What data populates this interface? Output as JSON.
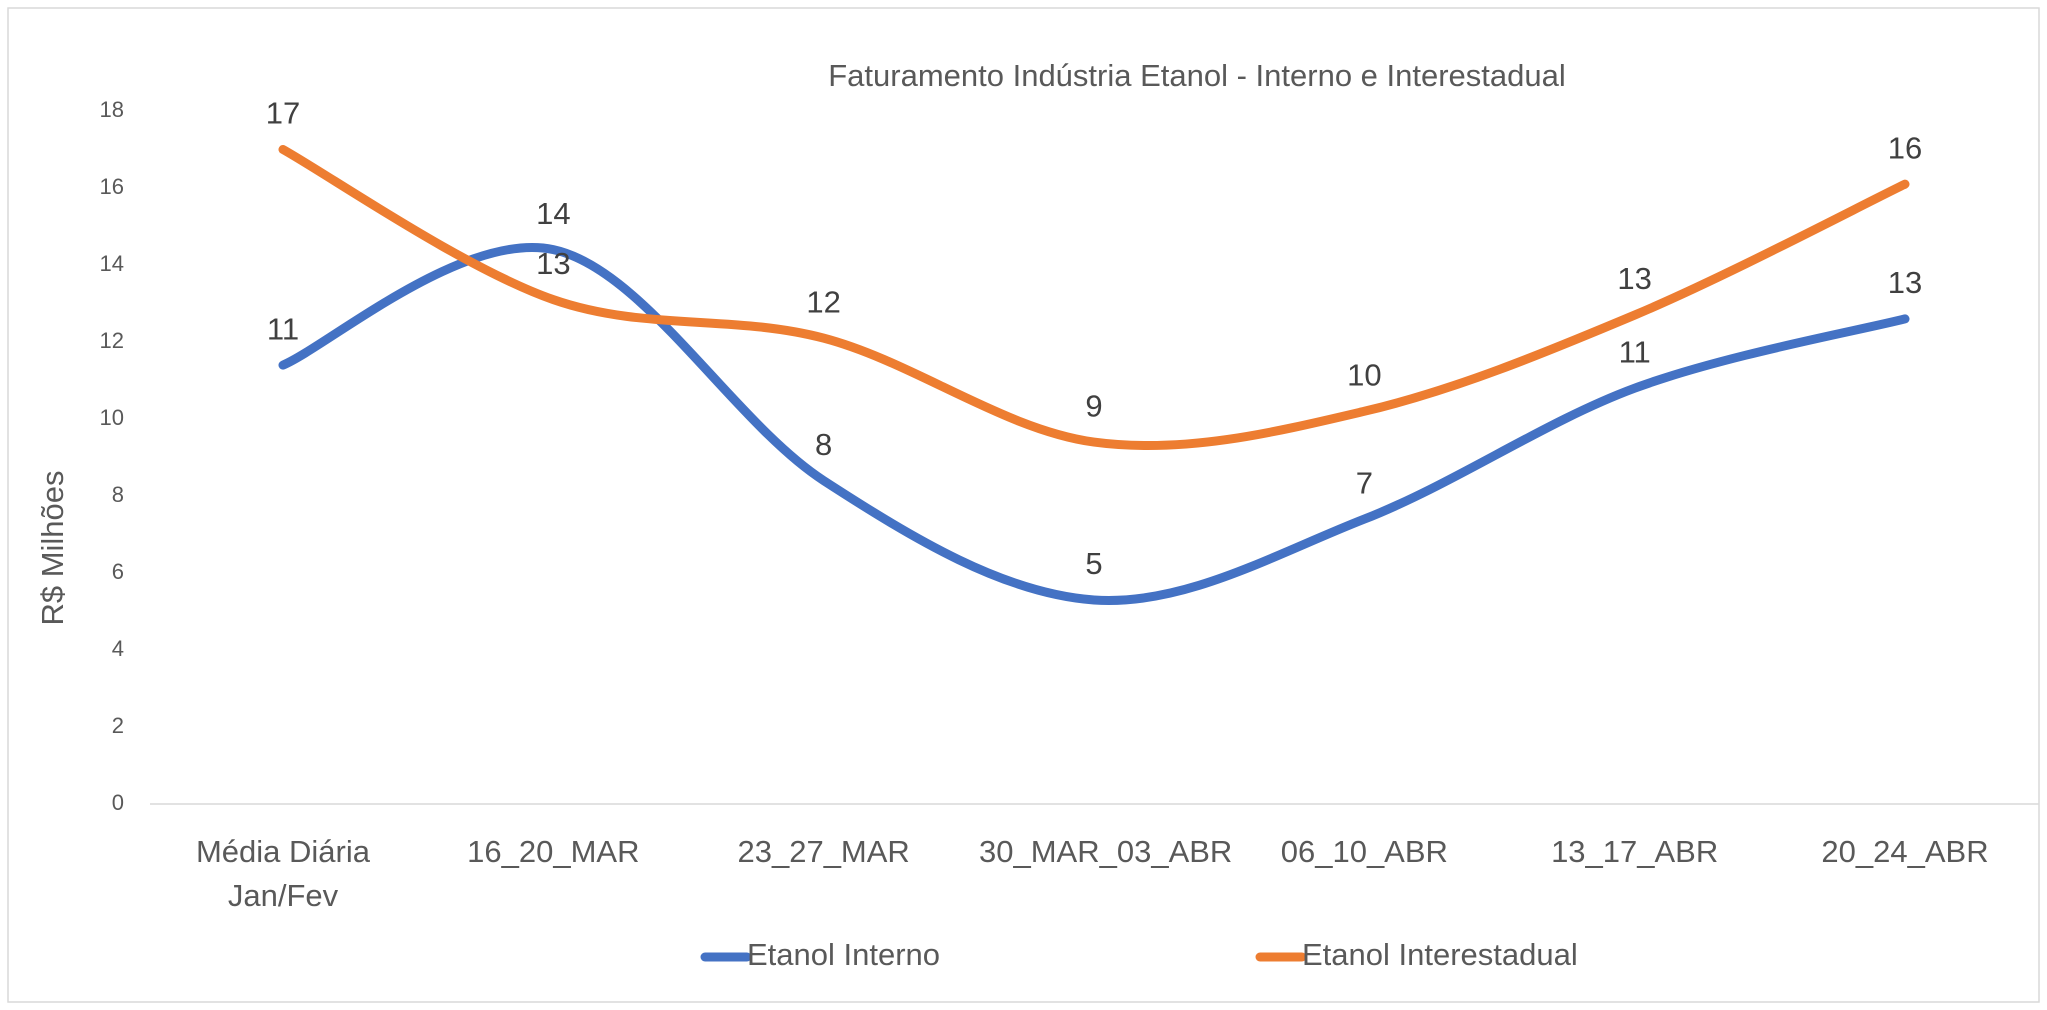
{
  "chart_data": {
    "type": "line",
    "title": "Faturamento Indústria Etanol - Interno e Interestadual",
    "y_label": "R$ Milhões",
    "categories": [
      "Média Diária Jan/Fev",
      "16_20_MAR",
      "23_27_MAR",
      "30_MAR_03_ABR",
      "06_10_ABR",
      "13_17_ABR",
      "20_24_ABR"
    ],
    "series": [
      {
        "name": "Etanol Interno",
        "color": "#4472c4",
        "values": [
          11.4,
          14.4,
          8.4,
          5.3,
          7.4,
          10.8,
          12.6
        ],
        "value_labels": [
          "11",
          "14",
          "8",
          "5",
          "7",
          "11",
          "13"
        ]
      },
      {
        "name": "Etanol Interestadual",
        "color": "#ed7d31",
        "values": [
          17.0,
          13.1,
          12.1,
          9.4,
          10.2,
          12.7,
          16.1
        ],
        "value_labels": [
          "17",
          "13",
          "12",
          "9",
          "10",
          "13",
          "16"
        ]
      }
    ],
    "ylim": [
      0,
      18
    ],
    "yticks": [
      0,
      2,
      4,
      6,
      8,
      10,
      12,
      14,
      16,
      18
    ],
    "grid": false,
    "smooth": true,
    "legend": "bottom"
  }
}
